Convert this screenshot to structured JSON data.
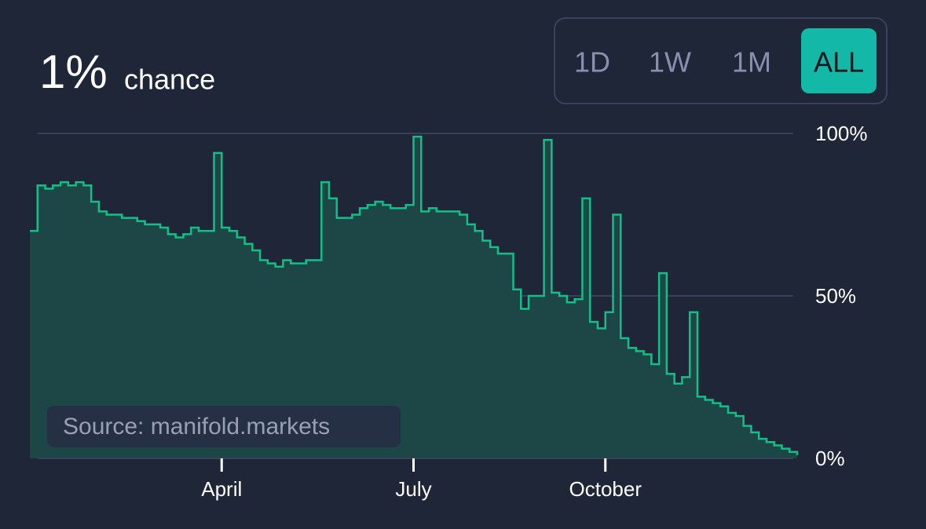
{
  "chart_data": {
    "type": "step-area",
    "title": "1%",
    "subtitle": "chance",
    "buttons": [
      "1D",
      "1W",
      "1M",
      "ALL"
    ],
    "active_button": "ALL",
    "source": "Source: manifold.markets",
    "color": "#12c087",
    "fill": "#1d4747",
    "xlim": [
      0,
      100
    ],
    "xticks": [
      {
        "value": 25,
        "label": "April"
      },
      {
        "value": 50,
        "label": "July"
      },
      {
        "value": 75,
        "label": "October"
      }
    ],
    "ylim": [
      0,
      100
    ],
    "yticks": [
      {
        "value": 0,
        "label": "0%"
      },
      {
        "value": 50,
        "label": "50%"
      },
      {
        "value": 100,
        "label": "100%"
      }
    ],
    "grid": true,
    "values": [
      70,
      84,
      83,
      84,
      85,
      84,
      85,
      84,
      79,
      76,
      75,
      75,
      74,
      74,
      73,
      72,
      72,
      71,
      69,
      68,
      69,
      71,
      70,
      70,
      94,
      71,
      70,
      68,
      66,
      64,
      61,
      60,
      59,
      61,
      60,
      60,
      61,
      61,
      85,
      80,
      74,
      74,
      75,
      77,
      78,
      79,
      78,
      77,
      77,
      78,
      99,
      76,
      77,
      76,
      76,
      76,
      75,
      72,
      70,
      67,
      65,
      63,
      63,
      52,
      46,
      50,
      50,
      98,
      51,
      50,
      48,
      49,
      80,
      42,
      40,
      45,
      75,
      37,
      34,
      33,
      32,
      29,
      57,
      26,
      23,
      25,
      45,
      19,
      18,
      17,
      16,
      14,
      13,
      10,
      8,
      6,
      5,
      4,
      3,
      2,
      1
    ]
  }
}
